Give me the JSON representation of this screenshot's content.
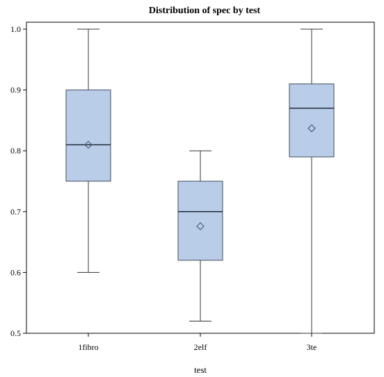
{
  "chart_data": {
    "type": "box",
    "title": "Distribution of spec by test",
    "xlabel": "test",
    "ylabel": "",
    "ylim": [
      0.5,
      1.0
    ],
    "yticks": [
      "0.5",
      "0.6",
      "0.7",
      "0.8",
      "0.9",
      "1.0"
    ],
    "categories": [
      "1fibro",
      "2elf",
      "3te"
    ],
    "boxes": [
      {
        "category": "1fibro",
        "min": 0.6,
        "q1": 0.75,
        "median": 0.81,
        "q3": 0.9,
        "max": 1.0,
        "mean": 0.81
      },
      {
        "category": "2elf",
        "min": 0.52,
        "q1": 0.62,
        "median": 0.7,
        "q3": 0.75,
        "max": 0.8,
        "mean": 0.676
      },
      {
        "category": "3te",
        "min": 0.5,
        "q1": 0.79,
        "median": 0.87,
        "q3": 0.91,
        "max": 1.0,
        "mean": 0.837
      }
    ],
    "colors": {
      "box_fill": "#b9cce8",
      "box_stroke": "#3d4a5c",
      "whisker": "#333333",
      "axis": "#000000"
    },
    "grid": false,
    "legend": "none"
  }
}
